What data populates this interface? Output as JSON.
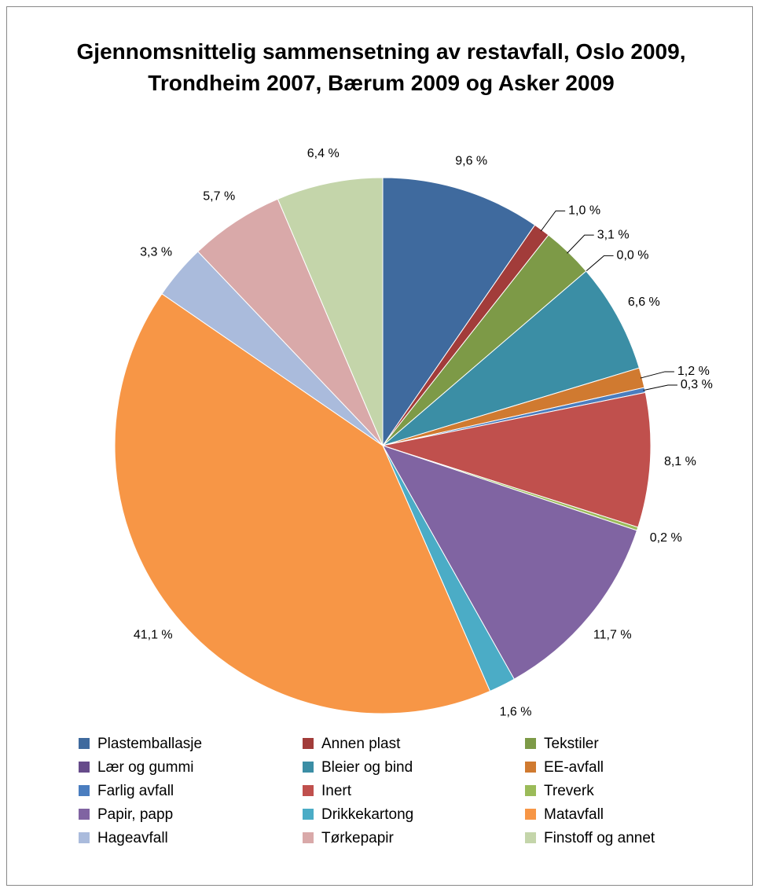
{
  "chart_data": {
    "type": "pie",
    "title": "Gjennomsnittelig sammensetning av restavfall, Oslo 2009, Trondheim 2007, Bærum 2009 og Asker 2009",
    "categories": [
      "Plastemballasje",
      "Annen plast",
      "Tekstiler",
      "Lær og gummi",
      "Bleier og bind",
      "EE-avfall",
      "Farlig avfall",
      "Inert",
      "Treverk",
      "Papir, papp",
      "Drikkekartong",
      "Matavfall",
      "Hageavfall",
      "Tørkepapir",
      "Finstoff og annet"
    ],
    "values": [
      9.6,
      1.0,
      3.1,
      0.0,
      6.6,
      1.2,
      0.3,
      8.1,
      0.2,
      11.7,
      1.6,
      41.1,
      3.3,
      5.7,
      6.4
    ],
    "value_labels": [
      "9,6 %",
      "1,0 %",
      "3,1 %",
      "0,0 %",
      "6,6 %",
      "1,2 %",
      "0,3 %",
      "8,1 %",
      "0,2 %",
      "11,7 %",
      "1,6 %",
      "41,1 %",
      "3,3 %",
      "5,7 %",
      "6,4 %"
    ],
    "colors": [
      "#3f6a9e",
      "#a23c3a",
      "#7d9a47",
      "#664b8a",
      "#3b8ea5",
      "#d07a30",
      "#4a7dbf",
      "#c0504d",
      "#9bbb59",
      "#8064a2",
      "#4bacc6",
      "#f79646",
      "#aabbdc",
      "#d9a9a9",
      "#c4d5aa"
    ],
    "legend": "bottom"
  }
}
